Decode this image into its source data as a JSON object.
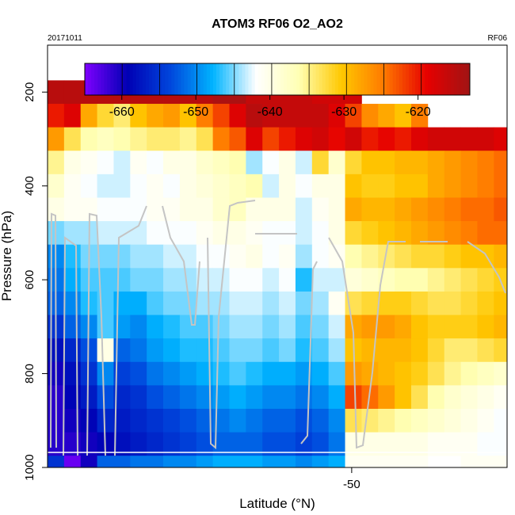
{
  "chart_data": {
    "type": "heatmap",
    "title": "ATOM3 RF06 O2_AO2",
    "date_label": "20171011",
    "flight_label": "RF06",
    "xlabel": "Latitude (°N)",
    "ylabel": "Pressure (hPa)",
    "xlim": [
      -59.2,
      -45.3
    ],
    "ylim": [
      1000,
      100
    ],
    "x_ticks": [
      -50
    ],
    "y_ticks": [
      200,
      400,
      600,
      800,
      1000
    ],
    "colorbar": {
      "range": [
        -665,
        -613
      ],
      "ticks": [
        -660,
        -650,
        -640,
        -630,
        -620
      ],
      "colors": [
        "#7f00ff",
        "#0000b4",
        "#0046dc",
        "#00b4ff",
        "#ffffff",
        "#ffffb4",
        "#ffc800",
        "#ff7800",
        "#e60000",
        "#a01414"
      ]
    },
    "column_edge_latitudes": [
      -59.2,
      -58.7,
      -58.2,
      -57.7,
      -57.2,
      -56.7,
      -56.2,
      -55.7,
      -55.2,
      -54.7,
      -54.2,
      -53.7,
      -53.2,
      -52.7,
      -52.2,
      -51.7,
      -51.2,
      -50.7,
      -50.2,
      -49.7,
      -49.2,
      -48.7,
      -48.2,
      -47.7,
      -47.2,
      -46.7,
      -46.2,
      -45.7,
      -45.3
    ],
    "rows": [
      {
        "pressure": 200,
        "values": [
          -615,
          -615,
          -615,
          -615,
          -615,
          -615,
          -615,
          -615,
          -615,
          -615,
          -614,
          -614,
          -616,
          -616,
          -616,
          -616,
          -617,
          -617,
          -617,
          null,
          null,
          null,
          null,
          null,
          null,
          null,
          null,
          null
        ]
      },
      {
        "pressure": 250,
        "values": [
          -620,
          -618,
          -628,
          -632,
          -634,
          -630,
          -628,
          -627,
          -630,
          -625,
          -622,
          -618,
          -615,
          -616,
          -616,
          -616,
          -616,
          -618,
          -622,
          -626,
          -628,
          -630,
          -625,
          null,
          null,
          null,
          null,
          null
        ]
      },
      {
        "pressure": 300,
        "values": [
          -627,
          -633,
          -636,
          -637,
          -636,
          -635,
          -634,
          -634,
          -635,
          -633,
          -625,
          -623,
          -618,
          -622,
          -620,
          -618,
          -617,
          -619,
          -617,
          -620,
          -619,
          -620,
          -618,
          -617,
          -617,
          -617,
          -617,
          -618
        ]
      },
      {
        "pressure": 350,
        "values": [
          -635,
          -640,
          -641,
          -642,
          -643,
          -641,
          -642,
          -640,
          -640,
          -638,
          -637,
          -636,
          -644,
          -642,
          -640,
          -643,
          -632,
          -638,
          -632,
          -630,
          -630,
          -629,
          -629,
          -628,
          -627,
          -626,
          -625,
          -624
        ]
      },
      {
        "pressure": 400,
        "values": [
          -638,
          -641,
          -642,
          -643,
          -643,
          -642,
          -641,
          -642,
          -640,
          -639,
          -638,
          -637,
          -636,
          -643,
          -640,
          -642,
          -640,
          -640,
          -630,
          -631,
          -631,
          -630,
          -630,
          -628,
          -627,
          -626,
          -625,
          -624
        ]
      },
      {
        "pressure": 450,
        "values": [
          -640,
          -641,
          -641,
          -642,
          -642,
          -642,
          -641,
          -641,
          -640,
          -640,
          -638,
          -637,
          -640,
          -640,
          -640,
          -643,
          -641,
          -640,
          -628,
          -629,
          -629,
          -628,
          -627,
          -626,
          -625,
          -624,
          -624,
          -623
        ]
      },
      {
        "pressure": 500,
        "values": [
          -645,
          -644,
          -644,
          -643,
          -643,
          -643,
          -642,
          -642,
          -642,
          -641,
          -640,
          -640,
          -641,
          -642,
          -642,
          -643,
          -642,
          -640,
          -632,
          -631,
          -630,
          -629,
          -628,
          -627,
          -626,
          -625,
          -624,
          -624
        ]
      },
      {
        "pressure": 550,
        "values": [
          -650,
          -647,
          -645,
          -645,
          -645,
          -644,
          -644,
          -643,
          -643,
          -642,
          -642,
          -641,
          -640,
          -642,
          -641,
          -644,
          -642,
          -641,
          -636,
          -635,
          -634,
          -633,
          -632,
          -632,
          -631,
          -630,
          -630,
          -629
        ]
      },
      {
        "pressure": 600,
        "values": [
          -651,
          -648,
          -646,
          -646,
          -646,
          -645,
          -645,
          -644,
          -644,
          -643,
          -643,
          -642,
          -642,
          -643,
          -642,
          -647,
          -643,
          -643,
          -639,
          -638,
          -637,
          -636,
          -636,
          -635,
          -634,
          -633,
          -632,
          -631
        ]
      },
      {
        "pressure": 650,
        "values": [
          -652,
          -650,
          -647,
          -646,
          -648,
          -648,
          -646,
          -645,
          -645,
          -644,
          -644,
          -643,
          -643,
          -644,
          -643,
          -645,
          -644,
          -641,
          -633,
          -632,
          -631,
          -631,
          -632,
          -633,
          -633,
          -632,
          -631,
          -630
        ]
      },
      {
        "pressure": 700,
        "values": [
          -655,
          -652,
          -650,
          -646,
          -649,
          -650,
          -648,
          -647,
          -646,
          -646,
          -645,
          -644,
          -644,
          -645,
          -644,
          -646,
          -645,
          -643,
          -628,
          -627,
          -627,
          -628,
          -630,
          -631,
          -631,
          -631,
          -630,
          -629
        ]
      },
      {
        "pressure": 750,
        "values": [
          -658,
          -656,
          -653,
          -640,
          -652,
          -651,
          -649,
          -648,
          -647,
          -647,
          -646,
          -645,
          -645,
          -646,
          -645,
          -647,
          -646,
          -644,
          -630,
          -629,
          -629,
          -629,
          -630,
          -632,
          -634,
          -634,
          -633,
          -632
        ]
      },
      {
        "pressure": 800,
        "values": [
          -660,
          -658,
          -655,
          -650,
          -654,
          -653,
          -651,
          -650,
          -649,
          -648,
          -647,
          -646,
          -647,
          -648,
          -648,
          -649,
          -648,
          -646,
          -627,
          -628,
          -629,
          -630,
          -631,
          -633,
          -635,
          -636,
          -637,
          -638
        ]
      },
      {
        "pressure": 850,
        "values": [
          -661,
          -659,
          -657,
          -653,
          -656,
          -655,
          -653,
          -652,
          -651,
          -650,
          -649,
          -648,
          -649,
          -650,
          -650,
          -651,
          -650,
          -648,
          -622,
          -624,
          -627,
          -630,
          -633,
          -636,
          -638,
          -639,
          -640,
          -641
        ]
      },
      {
        "pressure": 900,
        "values": [
          -661,
          -660,
          -659,
          -656,
          -657,
          -656,
          -655,
          -654,
          -653,
          -652,
          -651,
          -650,
          -651,
          -652,
          -652,
          -653,
          -652,
          -650,
          -633,
          -634,
          -635,
          -636,
          -637,
          -638,
          -639,
          -640,
          -641,
          -642
        ]
      },
      {
        "pressure": 950,
        "values": [
          -661,
          -661,
          -660,
          -659,
          -658,
          -657,
          -656,
          -655,
          -654,
          -653,
          -652,
          -652,
          -652,
          -653,
          -653,
          -654,
          -653,
          -651,
          -640,
          -640,
          -640,
          -640,
          -640,
          -641,
          -641,
          -641,
          -642,
          -642
        ]
      },
      {
        "pressure": 1000,
        "values": [
          -655,
          -664,
          -660,
          -652,
          -652,
          -651,
          -651,
          -650,
          -650,
          -649,
          -648,
          -648,
          -648,
          -649,
          -649,
          -650,
          -649,
          -648,
          -641,
          -641,
          -641,
          -641,
          -641,
          null,
          null,
          -641,
          -641,
          -641
        ]
      }
    ]
  }
}
